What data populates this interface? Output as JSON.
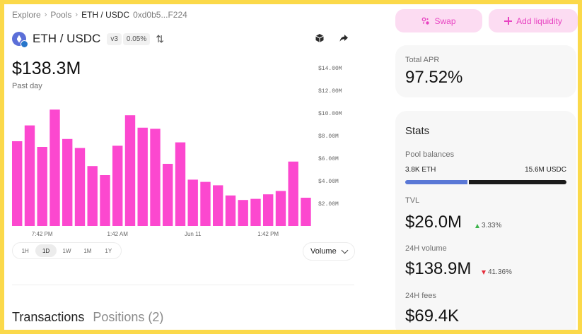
{
  "breadcrumb": {
    "items": [
      "Explore",
      "Pools"
    ],
    "current": "ETH / USDC",
    "address": "0xd0b5...F224"
  },
  "pool": {
    "pair": "ETH / USDC",
    "version": "v3",
    "fee": "0.05%",
    "icons": [
      "eth-token-icon",
      "usdc-token-icon",
      "swap-arrows-icon",
      "etherscan-icon",
      "share-icon"
    ]
  },
  "summary": {
    "value": "$138.3M",
    "period": "Past day"
  },
  "chart_data": {
    "type": "bar",
    "title": "",
    "xlabel": "",
    "ylabel": "",
    "ylim": [
      0,
      14
    ],
    "yticks": [
      "$14.00M",
      "$12.00M",
      "$10.00M",
      "$8.00M",
      "$6.00M",
      "$4.00M",
      "$2.00M"
    ],
    "ytick_values": [
      14,
      12,
      10,
      8,
      6,
      4,
      2
    ],
    "xticks": [
      {
        "label": "7:42 PM",
        "index": 2
      },
      {
        "label": "1:42 AM",
        "index": 8
      },
      {
        "label": "Jun 11",
        "index": 14
      },
      {
        "label": "1:42 PM",
        "index": 20
      }
    ],
    "series": [
      {
        "values": [
          7.5,
          8.9,
          7.0,
          10.3,
          7.7,
          6.9,
          5.3,
          4.5,
          7.1,
          9.8,
          8.7,
          8.6,
          5.5,
          7.4,
          4.1,
          3.9,
          3.6,
          2.7,
          2.3,
          2.4,
          2.8,
          3.1,
          5.7,
          2.5
        ]
      }
    ],
    "bar_color": "#fc48cf",
    "grid": false
  },
  "range_selector": {
    "options": [
      "1H",
      "1D",
      "1W",
      "1M",
      "1Y"
    ],
    "selected": "1D"
  },
  "metric_select": {
    "value": "Volume"
  },
  "tabs": [
    "Transactions",
    "Positions (2)"
  ],
  "actions": {
    "swap": "Swap",
    "add_liquidity": "Add liquidity"
  },
  "apr": {
    "label": "Total APR",
    "value": "97.52%"
  },
  "stats": {
    "title": "Stats",
    "pool_balances_label": "Pool balances",
    "balance_left": "3.8K ETH",
    "balance_right": "15.6M USDC",
    "balance_left_share": 0.39,
    "tvl_label": "TVL",
    "tvl_value": "$26.0M",
    "tvl_change": "3.33%",
    "volume_label": "24H volume",
    "volume_value": "$138.9M",
    "volume_change": "41.36%",
    "fees_label": "24H fees",
    "fees_value": "$69.4K"
  },
  "colors": {
    "accent": "#fc48cf",
    "accent_soft": "#fcdcf2",
    "frame": "#fbd94a",
    "up": "#3bb34a",
    "down": "#e52e3c"
  }
}
